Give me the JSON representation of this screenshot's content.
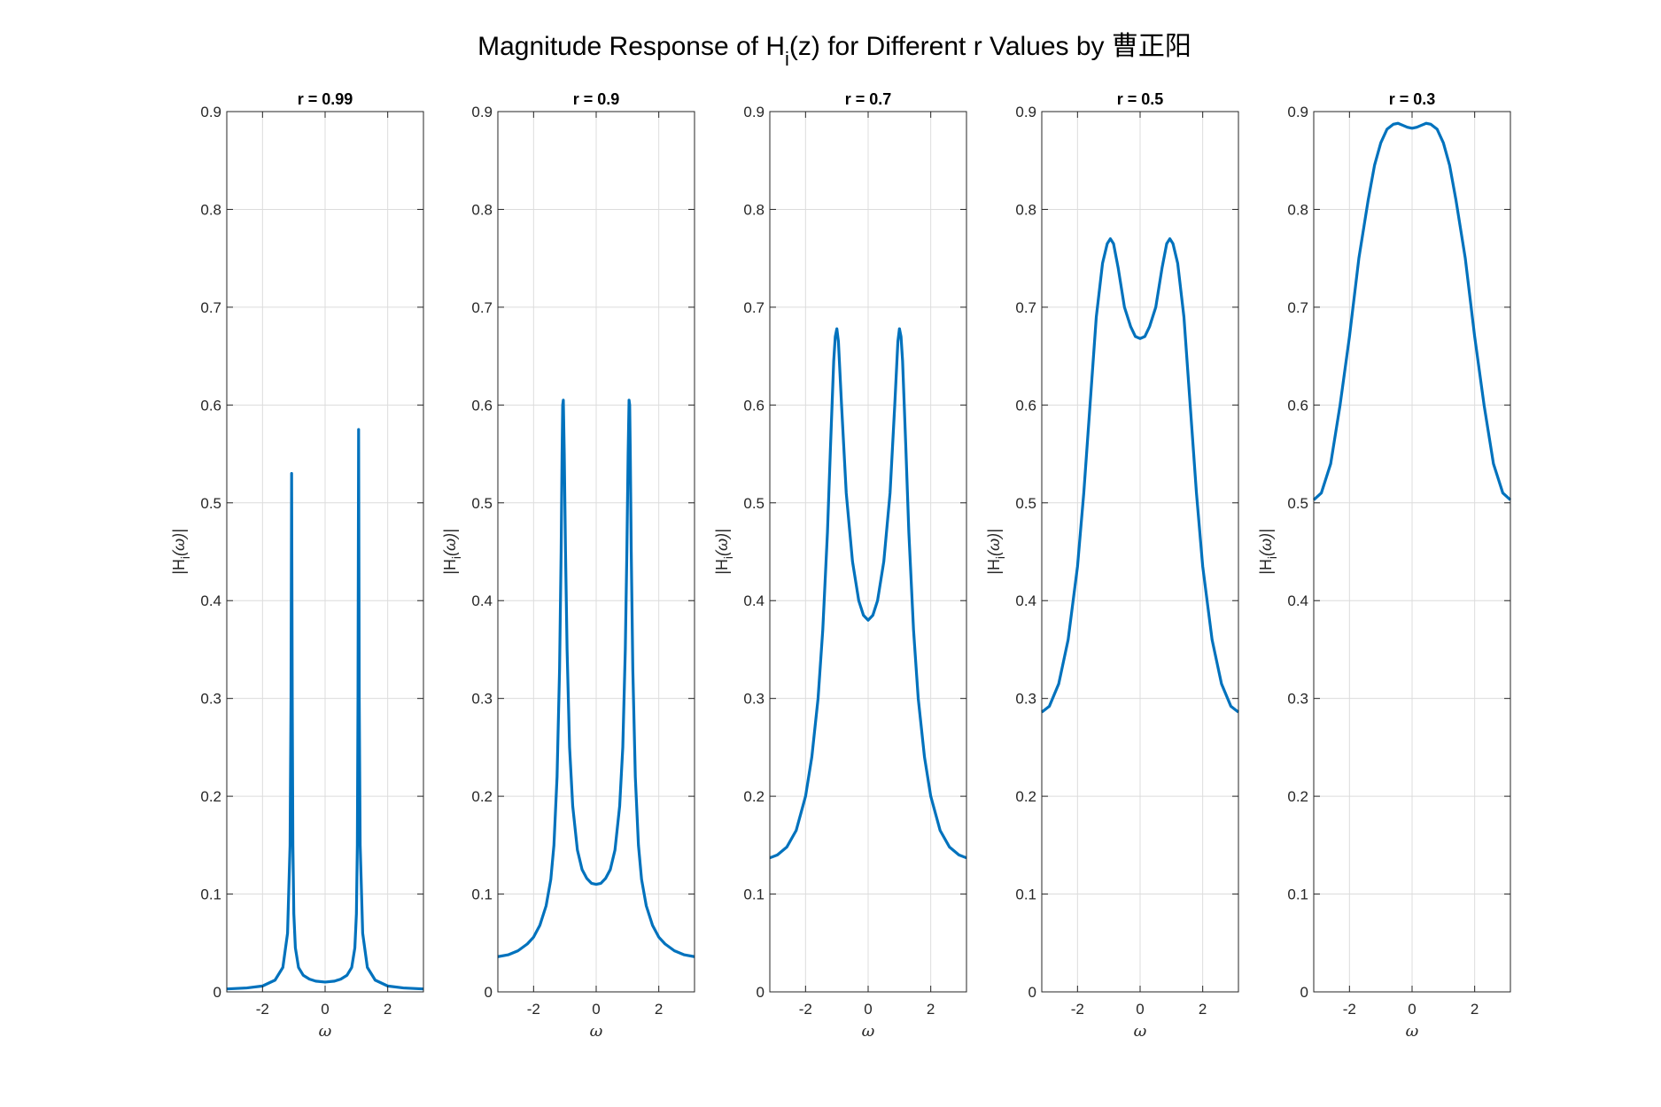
{
  "figure": {
    "title_main": "Magnitude Response of H",
    "title_sub": "i",
    "title_rest": "(z) for Different r Values by 曹正阳"
  },
  "colors": {
    "line": "#0072bd",
    "grid": "#dcdcdc",
    "axis": "#262626"
  },
  "chart_data": [
    {
      "type": "line",
      "title": "r = 0.99",
      "xlabel": "ω",
      "ylabel_main": "|H",
      "ylabel_sub": "i",
      "ylabel_rest": "(ω)|",
      "xlim": [
        -3.1416,
        3.1416
      ],
      "ylim": [
        0,
        0.9
      ],
      "xticks": [
        -2,
        0,
        2
      ],
      "xtick_labels": [
        "-2",
        "0",
        "2"
      ],
      "yticks": [
        0,
        0.1,
        0.2,
        0.3,
        0.4,
        0.5,
        0.6,
        0.7,
        0.8,
        0.9
      ],
      "ytick_labels": [
        "0",
        "0.1",
        "0.2",
        "0.3",
        "0.4",
        "0.5",
        "0.6",
        "0.7",
        "0.8",
        "0.9"
      ],
      "grid": true,
      "series": [
        {
          "x": [
            -3.1416,
            -2.5,
            -2.0,
            -1.6,
            -1.35,
            -1.2,
            -1.12,
            -1.09,
            -1.07,
            -1.05,
            -1.03,
            -1.0,
            -0.95,
            -0.85,
            -0.7,
            -0.5,
            -0.3,
            0.0,
            0.3,
            0.5,
            0.7,
            0.85,
            0.95,
            1.0,
            1.03,
            1.05,
            1.07,
            1.09,
            1.12,
            1.2,
            1.35,
            1.6,
            2.0,
            2.5,
            3.1416
          ],
          "y": [
            0.003,
            0.004,
            0.006,
            0.012,
            0.025,
            0.06,
            0.15,
            0.3,
            0.53,
            0.3,
            0.15,
            0.08,
            0.045,
            0.025,
            0.017,
            0.013,
            0.011,
            0.01,
            0.011,
            0.013,
            0.017,
            0.025,
            0.045,
            0.08,
            0.15,
            0.3,
            0.575,
            0.3,
            0.15,
            0.06,
            0.025,
            0.012,
            0.006,
            0.004,
            0.003
          ]
        }
      ]
    },
    {
      "type": "line",
      "title": "r = 0.9",
      "xlabel": "ω",
      "ylabel_main": "|H",
      "ylabel_sub": "i",
      "ylabel_rest": "(ω)|",
      "xlim": [
        -3.1416,
        3.1416
      ],
      "ylim": [
        0,
        0.9
      ],
      "xticks": [
        -2,
        0,
        2
      ],
      "xtick_labels": [
        "-2",
        "0",
        "2"
      ],
      "yticks": [
        0,
        0.1,
        0.2,
        0.3,
        0.4,
        0.5,
        0.6,
        0.7,
        0.8,
        0.9
      ],
      "ytick_labels": [
        "0",
        "0.1",
        "0.2",
        "0.3",
        "0.4",
        "0.5",
        "0.6",
        "0.7",
        "0.8",
        "0.9"
      ],
      "grid": true,
      "series": [
        {
          "x": [
            -3.1416,
            -2.8,
            -2.5,
            -2.2,
            -2.0,
            -1.8,
            -1.6,
            -1.45,
            -1.35,
            -1.25,
            -1.17,
            -1.12,
            -1.09,
            -1.07,
            -1.05,
            -1.02,
            -0.98,
            -0.93,
            -0.85,
            -0.75,
            -0.6,
            -0.45,
            -0.3,
            -0.15,
            0.0,
            0.15,
            0.3,
            0.45,
            0.6,
            0.75,
            0.85,
            0.93,
            0.98,
            1.02,
            1.05,
            1.07,
            1.09,
            1.12,
            1.17,
            1.25,
            1.35,
            1.45,
            1.6,
            1.8,
            2.0,
            2.2,
            2.5,
            2.8,
            3.1416
          ],
          "y": [
            0.036,
            0.038,
            0.042,
            0.049,
            0.056,
            0.068,
            0.088,
            0.115,
            0.15,
            0.22,
            0.33,
            0.45,
            0.55,
            0.6,
            0.605,
            0.55,
            0.45,
            0.35,
            0.25,
            0.19,
            0.145,
            0.125,
            0.116,
            0.111,
            0.11,
            0.111,
            0.116,
            0.125,
            0.145,
            0.19,
            0.25,
            0.35,
            0.45,
            0.55,
            0.605,
            0.6,
            0.55,
            0.45,
            0.33,
            0.22,
            0.15,
            0.115,
            0.088,
            0.068,
            0.056,
            0.049,
            0.042,
            0.038,
            0.036
          ]
        }
      ]
    },
    {
      "type": "line",
      "title": "r = 0.7",
      "xlabel": "ω",
      "ylabel_main": "|H",
      "ylabel_sub": "i",
      "ylabel_rest": "(ω)|",
      "xlim": [
        -3.1416,
        3.1416
      ],
      "ylim": [
        0,
        0.9
      ],
      "xticks": [
        -2,
        0,
        2
      ],
      "xtick_labels": [
        "-2",
        "0",
        "2"
      ],
      "yticks": [
        0,
        0.1,
        0.2,
        0.3,
        0.4,
        0.5,
        0.6,
        0.7,
        0.8,
        0.9
      ],
      "ytick_labels": [
        "0",
        "0.1",
        "0.2",
        "0.3",
        "0.4",
        "0.5",
        "0.6",
        "0.7",
        "0.8",
        "0.9"
      ],
      "grid": true,
      "series": [
        {
          "x": [
            -3.1416,
            -2.9,
            -2.6,
            -2.3,
            -2.0,
            -1.8,
            -1.6,
            -1.45,
            -1.3,
            -1.2,
            -1.1,
            -1.05,
            -1.0,
            -0.95,
            -0.85,
            -0.7,
            -0.5,
            -0.3,
            -0.15,
            0.0,
            0.15,
            0.3,
            0.5,
            0.7,
            0.85,
            0.95,
            1.0,
            1.05,
            1.1,
            1.2,
            1.3,
            1.45,
            1.6,
            1.8,
            2.0,
            2.3,
            2.6,
            2.9,
            3.1416
          ],
          "y": [
            0.137,
            0.14,
            0.148,
            0.165,
            0.2,
            0.24,
            0.3,
            0.37,
            0.47,
            0.56,
            0.645,
            0.67,
            0.678,
            0.665,
            0.6,
            0.51,
            0.44,
            0.4,
            0.385,
            0.38,
            0.385,
            0.4,
            0.44,
            0.51,
            0.6,
            0.665,
            0.678,
            0.67,
            0.645,
            0.56,
            0.47,
            0.37,
            0.3,
            0.24,
            0.2,
            0.165,
            0.148,
            0.14,
            0.137
          ]
        }
      ]
    },
    {
      "type": "line",
      "title": "r = 0.5",
      "xlabel": "ω",
      "ylabel_main": "|H",
      "ylabel_sub": "i",
      "ylabel_rest": "(ω)|",
      "xlim": [
        -3.1416,
        3.1416
      ],
      "ylim": [
        0,
        0.9
      ],
      "xticks": [
        -2,
        0,
        2
      ],
      "xtick_labels": [
        "-2",
        "0",
        "2"
      ],
      "yticks": [
        0,
        0.1,
        0.2,
        0.3,
        0.4,
        0.5,
        0.6,
        0.7,
        0.8,
        0.9
      ],
      "ytick_labels": [
        "0",
        "0.1",
        "0.2",
        "0.3",
        "0.4",
        "0.5",
        "0.6",
        "0.7",
        "0.8",
        "0.9"
      ],
      "grid": true,
      "series": [
        {
          "x": [
            -3.1416,
            -2.9,
            -2.6,
            -2.3,
            -2.0,
            -1.8,
            -1.6,
            -1.4,
            -1.2,
            -1.05,
            -0.95,
            -0.85,
            -0.7,
            -0.5,
            -0.3,
            -0.15,
            0.0,
            0.15,
            0.3,
            0.5,
            0.7,
            0.85,
            0.95,
            1.05,
            1.2,
            1.4,
            1.6,
            1.8,
            2.0,
            2.3,
            2.6,
            2.9,
            3.1416
          ],
          "y": [
            0.286,
            0.292,
            0.315,
            0.36,
            0.435,
            0.51,
            0.6,
            0.69,
            0.745,
            0.765,
            0.77,
            0.765,
            0.74,
            0.7,
            0.68,
            0.67,
            0.668,
            0.67,
            0.68,
            0.7,
            0.74,
            0.765,
            0.77,
            0.765,
            0.745,
            0.69,
            0.6,
            0.51,
            0.435,
            0.36,
            0.315,
            0.292,
            0.286
          ]
        }
      ]
    },
    {
      "type": "line",
      "title": "r = 0.3",
      "xlabel": "ω",
      "ylabel_main": "|H",
      "ylabel_sub": "i",
      "ylabel_rest": "(ω)|",
      "xlim": [
        -3.1416,
        3.1416
      ],
      "ylim": [
        0,
        0.9
      ],
      "xticks": [
        -2,
        0,
        2
      ],
      "xtick_labels": [
        "-2",
        "0",
        "2"
      ],
      "yticks": [
        0,
        0.1,
        0.2,
        0.3,
        0.4,
        0.5,
        0.6,
        0.7,
        0.8,
        0.9
      ],
      "ytick_labels": [
        "0",
        "0.1",
        "0.2",
        "0.3",
        "0.4",
        "0.5",
        "0.6",
        "0.7",
        "0.8",
        "0.9"
      ],
      "grid": true,
      "series": [
        {
          "x": [
            -3.1416,
            -2.9,
            -2.6,
            -2.3,
            -2.0,
            -1.7,
            -1.4,
            -1.2,
            -1.0,
            -0.8,
            -0.6,
            -0.45,
            -0.3,
            -0.15,
            0.0,
            0.15,
            0.3,
            0.45,
            0.6,
            0.8,
            1.0,
            1.2,
            1.4,
            1.7,
            2.0,
            2.3,
            2.6,
            2.9,
            3.1416
          ],
          "y": [
            0.503,
            0.51,
            0.54,
            0.6,
            0.67,
            0.75,
            0.81,
            0.845,
            0.868,
            0.882,
            0.887,
            0.888,
            0.886,
            0.884,
            0.883,
            0.884,
            0.886,
            0.888,
            0.887,
            0.882,
            0.868,
            0.845,
            0.81,
            0.75,
            0.67,
            0.6,
            0.54,
            0.51,
            0.503
          ]
        }
      ]
    }
  ]
}
